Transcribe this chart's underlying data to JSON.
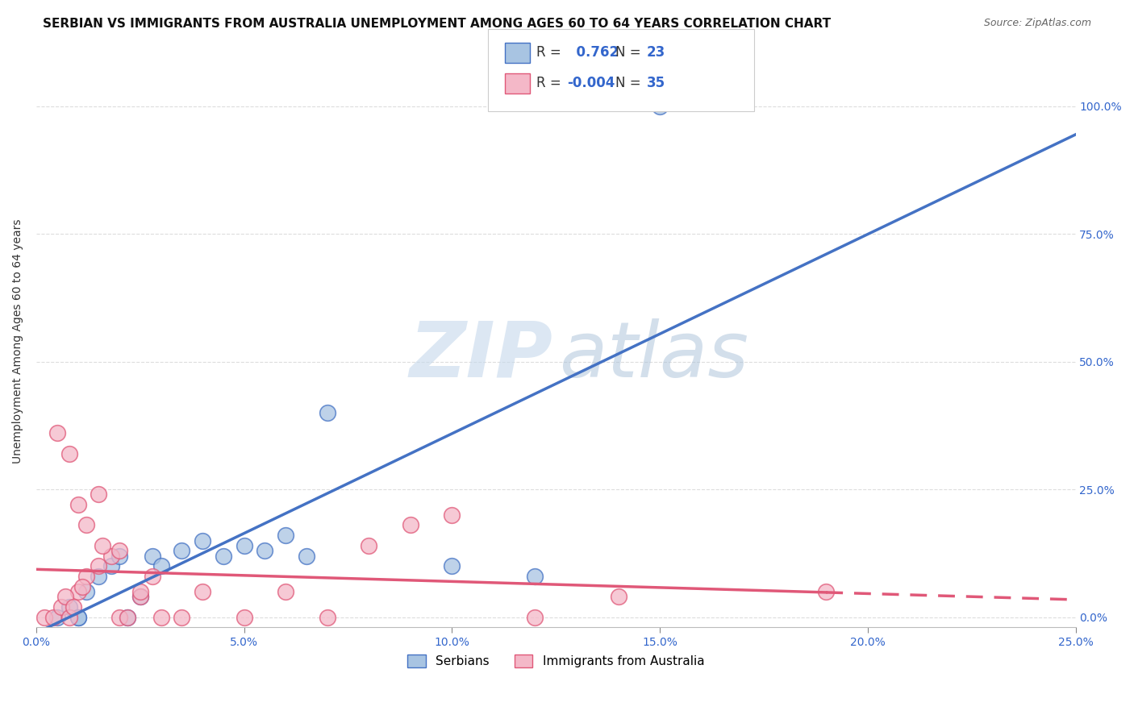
{
  "title": "SERBIAN VS IMMIGRANTS FROM AUSTRALIA UNEMPLOYMENT AMONG AGES 60 TO 64 YEARS CORRELATION CHART",
  "source": "Source: ZipAtlas.com",
  "ylabel": "Unemployment Among Ages 60 to 64 years",
  "xlim": [
    0.0,
    0.25
  ],
  "ylim": [
    -0.02,
    1.1
  ],
  "xticks": [
    0.0,
    0.05,
    0.1,
    0.15,
    0.2,
    0.25
  ],
  "yticks": [
    0.0,
    0.25,
    0.5,
    0.75,
    1.0
  ],
  "ytick_labels_right": [
    "0.0%",
    "25.0%",
    "50.0%",
    "75.0%",
    "100.0%"
  ],
  "xtick_labels": [
    "0.0%",
    "5.0%",
    "10.0%",
    "15.0%",
    "20.0%",
    "25.0%"
  ],
  "serbian_face_color": "#a8c4e2",
  "serbian_edge_color": "#4472c4",
  "immigrant_face_color": "#f4b8c8",
  "immigrant_edge_color": "#e05878",
  "R_serbian": 0.762,
  "N_serbian": 23,
  "R_immigrant": -0.004,
  "N_immigrant": 35,
  "serbians_x": [
    0.005,
    0.008,
    0.01,
    0.012,
    0.015,
    0.018,
    0.02,
    0.022,
    0.025,
    0.028,
    0.03,
    0.035,
    0.04,
    0.045,
    0.05,
    0.055,
    0.06,
    0.065,
    0.07,
    0.1,
    0.12,
    0.15,
    0.01
  ],
  "serbians_y": [
    0.0,
    0.02,
    0.0,
    0.05,
    0.08,
    0.1,
    0.12,
    0.0,
    0.04,
    0.12,
    0.1,
    0.13,
    0.15,
    0.12,
    0.14,
    0.13,
    0.16,
    0.12,
    0.4,
    0.1,
    0.08,
    1.0,
    0.0
  ],
  "immigrants_x": [
    0.002,
    0.004,
    0.006,
    0.008,
    0.01,
    0.012,
    0.015,
    0.018,
    0.02,
    0.022,
    0.025,
    0.028,
    0.03,
    0.035,
    0.04,
    0.05,
    0.06,
    0.07,
    0.08,
    0.09,
    0.1,
    0.12,
    0.14,
    0.005,
    0.008,
    0.01,
    0.012,
    0.015,
    0.02,
    0.025,
    0.007,
    0.009,
    0.011,
    0.016,
    0.19
  ],
  "immigrants_y": [
    0.0,
    0.0,
    0.02,
    0.0,
    0.05,
    0.08,
    0.1,
    0.12,
    0.0,
    0.0,
    0.04,
    0.08,
    0.0,
    0.0,
    0.05,
    0.0,
    0.05,
    0.0,
    0.14,
    0.18,
    0.2,
    0.0,
    0.04,
    0.36,
    0.32,
    0.22,
    0.18,
    0.24,
    0.13,
    0.05,
    0.04,
    0.02,
    0.06,
    0.14,
    0.05
  ],
  "background_color": "#ffffff",
  "grid_color": "#dddddd",
  "title_fontsize": 11,
  "axis_label_fontsize": 10,
  "tick_fontsize": 10,
  "legend_fontsize": 12,
  "source_fontsize": 9,
  "tick_color": "#3366cc",
  "text_color": "#111111"
}
